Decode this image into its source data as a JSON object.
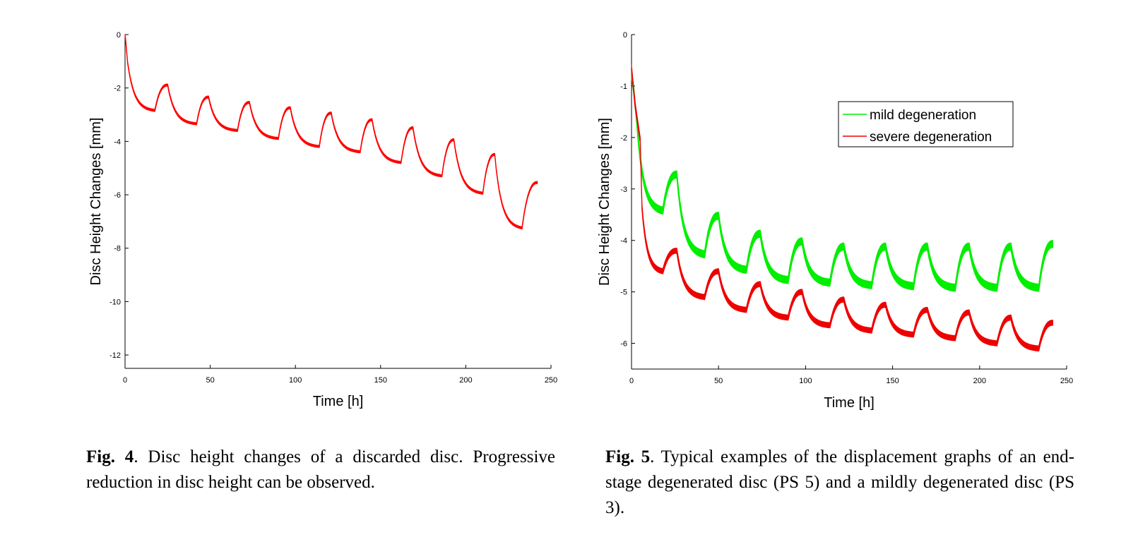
{
  "charts": [
    {
      "chart_data": {
        "type": "line",
        "title": "",
        "xlabel": "Time [h]",
        "ylabel": "Disc Height Changes [mm]",
        "xlim": [
          0,
          250
        ],
        "ylim": [
          -12.5,
          0
        ],
        "xticks": [
          "0",
          "50",
          "100",
          "150",
          "200",
          "250"
        ],
        "yticks": [
          "0",
          "-2",
          "-4",
          "-6",
          "-8",
          "-10",
          "-12"
        ],
        "grid": false,
        "legend": null,
        "series": [
          {
            "color": "#ff0000",
            "band": 0.08,
            "start": {
              "x": 0,
              "y": 0
            },
            "drop": [
              {
                "x": 0.4,
                "y": -0.2
              },
              {
                "x": 1.5,
                "y": -1.0
              }
            ],
            "cycles": [
              {
                "compress_to_x": 17.5,
                "from_y": -1.0,
                "to_y": -2.8,
                "recover_to_x": 25,
                "recover_y": -1.85
              },
              {
                "compress_to_x": 42,
                "from_y": -1.85,
                "to_y": -3.3,
                "recover_to_x": 49,
                "recover_y": -2.3
              },
              {
                "compress_to_x": 66,
                "from_y": -2.3,
                "to_y": -3.55,
                "recover_to_x": 73,
                "recover_y": -2.5
              },
              {
                "compress_to_x": 90,
                "from_y": -2.5,
                "to_y": -3.85,
                "recover_to_x": 97,
                "recover_y": -2.7
              },
              {
                "compress_to_x": 114,
                "from_y": -2.7,
                "to_y": -4.15,
                "recover_to_x": 121,
                "recover_y": -2.9
              },
              {
                "compress_to_x": 138,
                "from_y": -2.9,
                "to_y": -4.35,
                "recover_to_x": 145,
                "recover_y": -3.15
              },
              {
                "compress_to_x": 162,
                "from_y": -3.15,
                "to_y": -4.75,
                "recover_to_x": 169,
                "recover_y": -3.45
              },
              {
                "compress_to_x": 186,
                "from_y": -3.45,
                "to_y": -5.25,
                "recover_to_x": 193,
                "recover_y": -3.9
              },
              {
                "compress_to_x": 210,
                "from_y": -3.9,
                "to_y": -5.9,
                "recover_to_x": 217,
                "recover_y": -4.45
              },
              {
                "compress_to_x": 233,
                "from_y": -4.45,
                "to_y": -7.2,
                "recover_to_x": 242,
                "recover_y": -5.5,
                "dip": {
                  "x": 222,
                  "y": -6.7
                }
              }
            ]
          }
        ]
      }
    },
    {
      "chart_data": {
        "type": "line",
        "title": "",
        "xlabel": "Time [h]",
        "ylabel": "Disc Height Changes [mm]",
        "xlim": [
          0,
          250
        ],
        "ylim": [
          -6.5,
          0
        ],
        "xticks": [
          "0",
          "50",
          "100",
          "150",
          "200",
          "250"
        ],
        "yticks": [
          "0",
          "-1",
          "-2",
          "-3",
          "-4",
          "-5",
          "-6"
        ],
        "grid": false,
        "legend": {
          "position": "top-right"
        },
        "series": [
          {
            "name": "mild degeneration",
            "color": "#00ee00",
            "band": 0.14,
            "start": {
              "x": 0,
              "y": -0.7
            },
            "drop": [
              {
                "x": 1.2,
                "y": -1.0
              },
              {
                "x": 3,
                "y": -1.6
              }
            ],
            "cycles": [
              {
                "compress_to_x": 18,
                "from_y": -1.6,
                "to_y": -3.35,
                "recover_to_x": 26,
                "recover_y": -2.65
              },
              {
                "compress_to_x": 42,
                "from_y": -2.65,
                "to_y": -4.2,
                "recover_to_x": 50,
                "recover_y": -3.45
              },
              {
                "compress_to_x": 66,
                "from_y": -3.45,
                "to_y": -4.5,
                "recover_to_x": 74,
                "recover_y": -3.8
              },
              {
                "compress_to_x": 90,
                "from_y": -3.8,
                "to_y": -4.7,
                "recover_to_x": 98,
                "recover_y": -3.95
              },
              {
                "compress_to_x": 114,
                "from_y": -3.95,
                "to_y": -4.75,
                "recover_to_x": 122,
                "recover_y": -4.05
              },
              {
                "compress_to_x": 138,
                "from_y": -4.05,
                "to_y": -4.8,
                "recover_to_x": 146,
                "recover_y": -4.05
              },
              {
                "compress_to_x": 162,
                "from_y": -4.05,
                "to_y": -4.82,
                "recover_to_x": 170,
                "recover_y": -4.05
              },
              {
                "compress_to_x": 186,
                "from_y": -4.05,
                "to_y": -4.85,
                "recover_to_x": 194,
                "recover_y": -4.05
              },
              {
                "compress_to_x": 210,
                "from_y": -4.05,
                "to_y": -4.85,
                "recover_to_x": 218,
                "recover_y": -4.05
              },
              {
                "compress_to_x": 234,
                "from_y": -4.05,
                "to_y": -4.85,
                "recover_to_x": 242,
                "recover_y": -4.0
              }
            ]
          },
          {
            "name": "severe degeneration",
            "color": "#ee0000",
            "band": 0.1,
            "start": {
              "x": 0,
              "y": -0.6
            },
            "drop": [
              {
                "x": 2,
                "y": -1.3
              },
              {
                "x": 5,
                "y": -2.0
              },
              {
                "x": 6,
                "y": -3.3
              }
            ],
            "cycles": [
              {
                "compress_to_x": 18,
                "from_y": -3.3,
                "to_y": -4.55,
                "recover_to_x": 26,
                "recover_y": -4.15
              },
              {
                "compress_to_x": 42,
                "from_y": -4.15,
                "to_y": -5.05,
                "recover_to_x": 50,
                "recover_y": -4.55
              },
              {
                "compress_to_x": 66,
                "from_y": -4.55,
                "to_y": -5.3,
                "recover_to_x": 74,
                "recover_y": -4.8
              },
              {
                "compress_to_x": 90,
                "from_y": -4.8,
                "to_y": -5.45,
                "recover_to_x": 98,
                "recover_y": -4.95
              },
              {
                "compress_to_x": 114,
                "from_y": -4.95,
                "to_y": -5.6,
                "recover_to_x": 122,
                "recover_y": -5.1
              },
              {
                "compress_to_x": 138,
                "from_y": -5.1,
                "to_y": -5.7,
                "recover_to_x": 146,
                "recover_y": -5.2
              },
              {
                "compress_to_x": 162,
                "from_y": -5.2,
                "to_y": -5.78,
                "recover_to_x": 170,
                "recover_y": -5.3
              },
              {
                "compress_to_x": 186,
                "from_y": -5.3,
                "to_y": -5.85,
                "recover_to_x": 194,
                "recover_y": -5.35
              },
              {
                "compress_to_x": 210,
                "from_y": -5.35,
                "to_y": -5.95,
                "recover_to_x": 218,
                "recover_y": -5.45
              },
              {
                "compress_to_x": 234,
                "from_y": -5.45,
                "to_y": -6.05,
                "recover_to_x": 242,
                "recover_y": -5.55
              }
            ]
          }
        ]
      }
    }
  ],
  "captions": [
    {
      "label": "Fig. 4",
      "text": ". Disc height changes of a discarded disc. Progressive reduction in disc height can be observed."
    },
    {
      "label": "Fig. 5",
      "text": ". Typical examples of the displacement graphs of an end-stage degenerated disc (PS 5) and a mildly degenerated disc (PS 3)."
    }
  ]
}
